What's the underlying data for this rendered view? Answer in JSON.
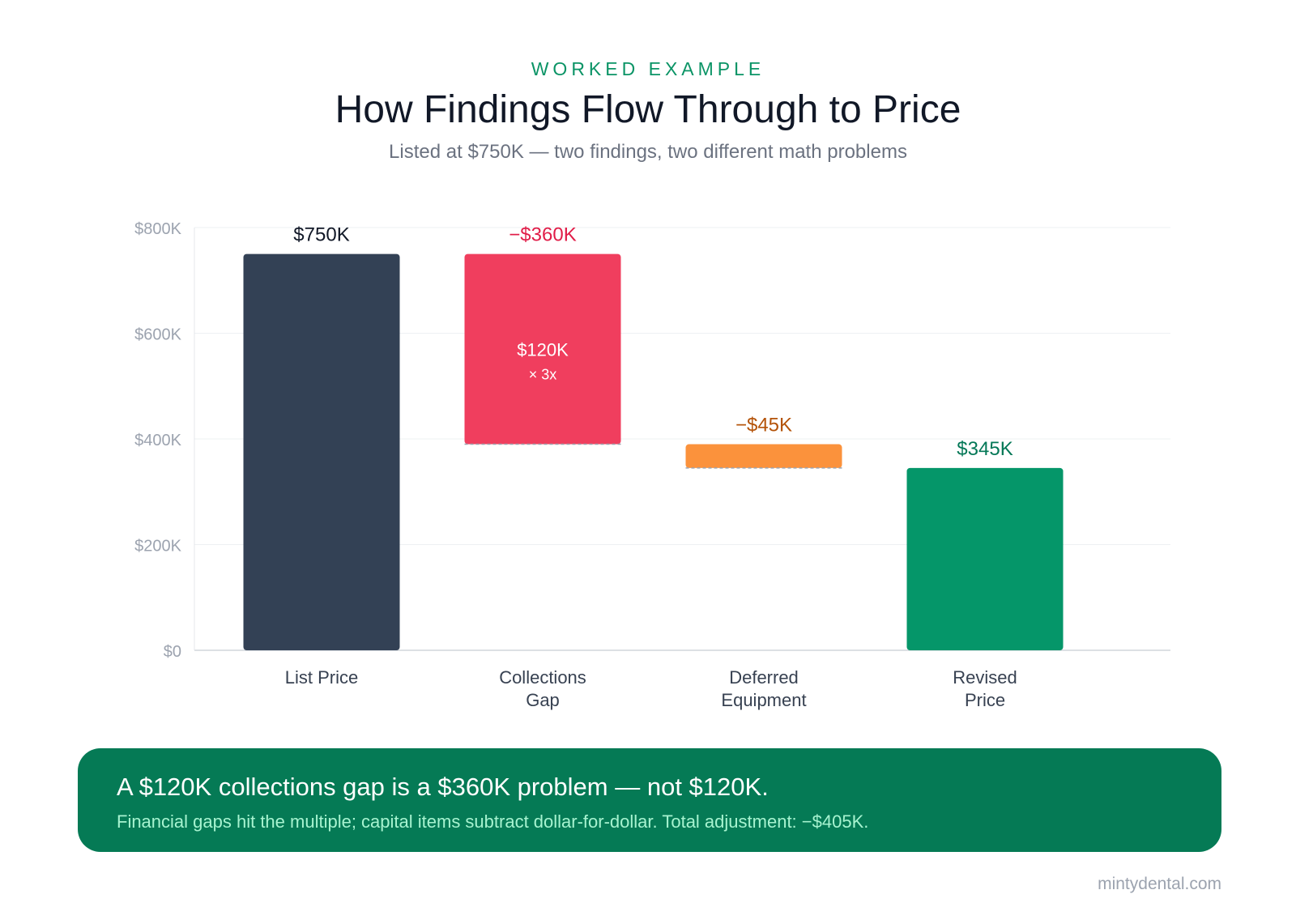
{
  "header": {
    "eyebrow": "WORKED EXAMPLE",
    "title": "How Findings Flow Through to Price",
    "subtitle": "Listed at $750K — two findings, two different math problems"
  },
  "chart_data": {
    "type": "waterfall",
    "ylim": [
      0,
      800
    ],
    "yticks": [
      0,
      200,
      400,
      600,
      800
    ],
    "ytick_labels": [
      "$0",
      "$200K",
      "$400K",
      "$600K",
      "$800K"
    ],
    "grid": true,
    "bars": [
      {
        "category": "List Price",
        "kind": "total",
        "start": 0,
        "end": 750,
        "label": "$750K",
        "color": "#334155",
        "label_color": "#111827"
      },
      {
        "category": "Collections Gap",
        "kind": "decrease",
        "start": 750,
        "end": 390,
        "label": "−$360K",
        "inner_label": "$120K",
        "inner_sublabel": "× 3x",
        "color": "#f03e5e",
        "label_color": "#e11d48"
      },
      {
        "category": "Deferred Equipment",
        "kind": "decrease",
        "start": 390,
        "end": 345,
        "label": "−$45K",
        "color": "#fb923c",
        "label_color": "#b45309"
      },
      {
        "category": "Revised Price",
        "kind": "total",
        "start": 0,
        "end": 345,
        "label": "$345K",
        "color": "#059669",
        "label_color": "#047857"
      }
    ]
  },
  "callout": {
    "headline": "A $120K collections gap is a $360K problem — not $120K.",
    "detail": "Financial gaps hit the multiple; capital items subtract dollar-for-dollar. Total adjustment: −$405K."
  },
  "footer": {
    "site": "mintydental.com"
  }
}
